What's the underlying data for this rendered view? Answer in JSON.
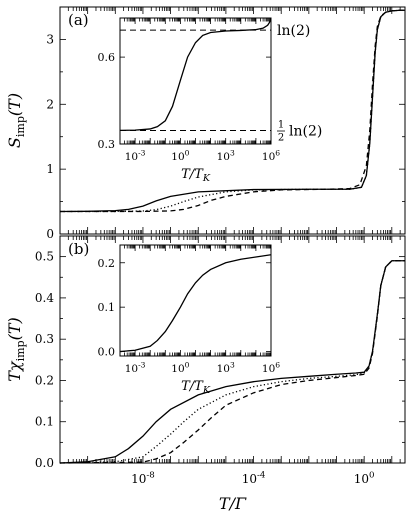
{
  "chart_data": [
    {
      "id": "a",
      "type": "line",
      "panel_label": "(a)",
      "ylabel_main": "S",
      "ylabel_sub": "imp",
      "ylabel_arg": "(T)",
      "xscale": "log",
      "xlim": [
        1e-11,
        30
      ],
      "ylim": [
        0,
        3.5
      ],
      "yticks": [
        0,
        1,
        2,
        3
      ],
      "yticklabels": [
        "0",
        "1",
        "2",
        "3"
      ],
      "series": [
        {
          "style": "solid",
          "x": [
            1e-11,
            1e-10,
            1e-09,
            3e-09,
            1e-08,
            3e-08,
            1e-07,
            1e-06,
            0.0001,
            0.01,
            0.3,
            0.8,
            1.2,
            1.6,
            2,
            2.5,
            3,
            4,
            6,
            10,
            20,
            30
          ],
          "y": [
            0.347,
            0.35,
            0.36,
            0.38,
            0.43,
            0.51,
            0.58,
            0.65,
            0.685,
            0.69,
            0.69,
            0.72,
            0.9,
            1.4,
            2.1,
            2.8,
            3.15,
            3.35,
            3.42,
            3.44,
            3.45,
            3.45
          ]
        },
        {
          "style": "dotted",
          "x": [
            1e-11,
            1e-09,
            1e-08,
            3e-08,
            1e-07,
            3e-07,
            1e-06,
            1e-05,
            0.0001,
            0.01,
            0.3,
            0.8,
            1.2,
            1.6,
            2,
            2.5,
            3,
            4,
            6,
            10,
            20,
            30
          ],
          "y": [
            0.347,
            0.348,
            0.355,
            0.375,
            0.43,
            0.5,
            0.57,
            0.65,
            0.68,
            0.69,
            0.69,
            0.72,
            0.9,
            1.4,
            2.1,
            2.8,
            3.15,
            3.35,
            3.42,
            3.44,
            3.45,
            3.45
          ]
        },
        {
          "style": "dashed",
          "x": [
            1e-11,
            1e-08,
            1e-07,
            3e-07,
            1e-06,
            3e-06,
            1e-05,
            0.0001,
            0.001,
            0.05,
            0.3,
            0.7,
            1.2,
            1.6,
            2,
            2.5,
            3,
            4,
            6,
            10,
            20,
            30
          ],
          "y": [
            0.347,
            0.348,
            0.356,
            0.38,
            0.44,
            0.52,
            0.58,
            0.65,
            0.68,
            0.69,
            0.7,
            0.76,
            1.05,
            1.6,
            2.3,
            2.9,
            3.2,
            3.36,
            3.42,
            3.44,
            3.45,
            3.45
          ]
        }
      ],
      "inset": {
        "xlabel": "T/T",
        "xlabel_sub": "K",
        "xscale": "log",
        "xlim": [
          0.0001,
          1000000.0
        ],
        "ylim": [
          0.3,
          0.735
        ],
        "xticks": [
          0.001,
          1,
          1000.0,
          1000000.0
        ],
        "xticklabels": [
          [
            "10",
            "-3"
          ],
          [
            "10",
            "0"
          ],
          [
            "10",
            "3"
          ],
          [
            "10",
            "6"
          ]
        ],
        "yticks": [
          0.3,
          0.6
        ],
        "yticklabels": [
          "0.3",
          "0.6"
        ],
        "reflines": [
          {
            "y": 0.6931,
            "label": "ln(2)"
          },
          {
            "y": 0.3466,
            "label_frac": [
              "1",
              "2"
            ],
            "label": "ln(2)"
          }
        ],
        "series": [
          {
            "style": "solid",
            "x": [
              0.0001,
              0.001,
              0.01,
              0.03,
              0.1,
              0.3,
              1,
              3,
              10,
              30,
              100,
              1000,
              10000.0,
              100000.0,
              300000.0,
              600000.0,
              800000.0,
              1000000.0
            ],
            "y": [
              0.347,
              0.348,
              0.352,
              0.36,
              0.38,
              0.43,
              0.52,
              0.6,
              0.65,
              0.675,
              0.685,
              0.69,
              0.692,
              0.695,
              0.7,
              0.71,
              0.72,
              0.735
            ]
          }
        ]
      }
    },
    {
      "id": "b",
      "type": "line",
      "panel_label": "(b)",
      "ylabel_main": "Tχ",
      "ylabel_sub": "imp",
      "ylabel_arg": "(T)",
      "xlabel": "T/Γ",
      "xscale": "log",
      "xlim": [
        1e-11,
        30
      ],
      "ylim": [
        0,
        0.55
      ],
      "xticks": [
        1e-08,
        0.0001,
        1
      ],
      "xticklabels": [
        [
          "10",
          "-8"
        ],
        [
          "10",
          "-4"
        ],
        [
          "10",
          "0"
        ]
      ],
      "yticks": [
        0,
        0.1,
        0.2,
        0.3,
        0.4,
        0.5
      ],
      "yticklabels": [
        "0.0",
        "0.1",
        "0.2",
        "0.3",
        "0.4",
        "0.5"
      ],
      "series": [
        {
          "style": "solid",
          "x": [
            1e-11,
            1e-10,
            1e-09,
            3e-09,
            1e-08,
            3e-08,
            1e-07,
            1e-06,
            1e-05,
            0.0001,
            0.001,
            0.01,
            0.1,
            0.5,
            1,
            1.5,
            2,
            3,
            4,
            6,
            10,
            20,
            30
          ],
          "y": [
            0,
            0.003,
            0.015,
            0.035,
            0.065,
            0.1,
            0.13,
            0.165,
            0.185,
            0.197,
            0.205,
            0.21,
            0.215,
            0.218,
            0.22,
            0.235,
            0.27,
            0.36,
            0.43,
            0.475,
            0.49,
            0.49,
            0.49
          ]
        },
        {
          "style": "dotted",
          "x": [
            1e-11,
            1e-09,
            1e-08,
            3e-08,
            1e-07,
            3e-07,
            1e-06,
            1e-05,
            0.0001,
            0.001,
            0.01,
            0.1,
            0.5,
            1,
            1.5,
            2,
            3,
            4,
            6,
            10,
            20,
            30
          ],
          "y": [
            0,
            0.003,
            0.015,
            0.04,
            0.07,
            0.1,
            0.13,
            0.165,
            0.185,
            0.197,
            0.205,
            0.21,
            0.214,
            0.218,
            0.235,
            0.27,
            0.36,
            0.43,
            0.475,
            0.49,
            0.49,
            0.49
          ]
        },
        {
          "style": "dashed",
          "x": [
            1e-11,
            1e-08,
            3e-08,
            1e-07,
            3e-07,
            1e-06,
            3e-06,
            1e-05,
            0.0001,
            0.001,
            0.01,
            0.1,
            0.5,
            1,
            1.5,
            2,
            3,
            4,
            6,
            10,
            20,
            30
          ],
          "y": [
            0,
            0.002,
            0.01,
            0.025,
            0.05,
            0.08,
            0.11,
            0.14,
            0.17,
            0.19,
            0.2,
            0.207,
            0.212,
            0.215,
            0.23,
            0.265,
            0.355,
            0.43,
            0.475,
            0.49,
            0.49,
            0.49
          ]
        }
      ],
      "inset": {
        "xlabel": "T/T",
        "xlabel_sub": "K",
        "xscale": "log",
        "xlim": [
          0.0001,
          1000000.0
        ],
        "ylim": [
          -0.01,
          0.24
        ],
        "xticks": [
          0.001,
          1,
          1000.0,
          1000000.0
        ],
        "xticklabels": [
          [
            "10",
            "-3"
          ],
          [
            "10",
            "0"
          ],
          [
            "10",
            "3"
          ],
          [
            "10",
            "6"
          ]
        ],
        "yticks": [
          0,
          0.1,
          0.2
        ],
        "yticklabels": [
          "0.0",
          "0.1",
          "0.2"
        ],
        "series": [
          {
            "style": "solid",
            "x": [
              0.0001,
              0.001,
              0.01,
              0.03,
              0.1,
              0.3,
              1,
              3,
              10,
              30,
              100,
              1000,
              10000.0,
              100000.0,
              1000000.0
            ],
            "y": [
              0,
              0.003,
              0.012,
              0.025,
              0.045,
              0.07,
              0.1,
              0.13,
              0.155,
              0.172,
              0.185,
              0.2,
              0.208,
              0.213,
              0.218
            ]
          }
        ]
      }
    }
  ]
}
